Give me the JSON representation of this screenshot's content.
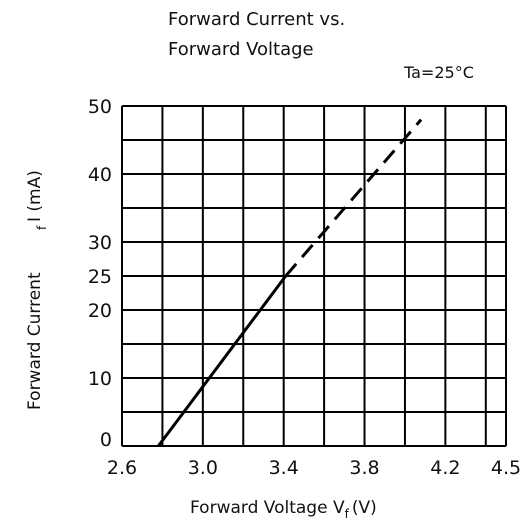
{
  "chart_data": {
    "type": "line",
    "title_line1": "Forward Current vs.",
    "title_line2": "Forward Voltage",
    "condition": "Ta=25°C",
    "xlabel": "Forward Voltage  V",
    "xlabel_sub": "f",
    "xlabel_unit": "(V)",
    "ylabel": "Forward Current",
    "ylabel_sub": "f",
    "ylabel_unit": "I (mA)",
    "xlim": [
      2.6,
      4.5
    ],
    "ylim": [
      0,
      50
    ],
    "grid": true,
    "x_grid": [
      2.6,
      2.8,
      3.0,
      3.2,
      3.4,
      3.6,
      3.8,
      4.0,
      4.2,
      4.4,
      4.5
    ],
    "y_grid": [
      0,
      5,
      10,
      15,
      20,
      25,
      30,
      35,
      40,
      45,
      50
    ],
    "x_ticks": [
      "2.6",
      "3.0",
      "3.4",
      "3.8",
      "4.2",
      "4.5"
    ],
    "x_tick_values": [
      2.6,
      3.0,
      3.4,
      3.8,
      4.2,
      4.5
    ],
    "y_ticks": [
      "0",
      "10",
      "20",
      "25",
      "30",
      "40",
      "50"
    ],
    "y_tick_values": [
      0,
      10,
      20,
      25,
      30,
      40,
      50
    ],
    "series": [
      {
        "style": "solid",
        "x": [
          2.78,
          3.41
        ],
        "y": [
          0,
          25
        ]
      },
      {
        "style": "dashed",
        "x": [
          3.41,
          4.08
        ],
        "y": [
          25,
          48
        ]
      }
    ]
  }
}
